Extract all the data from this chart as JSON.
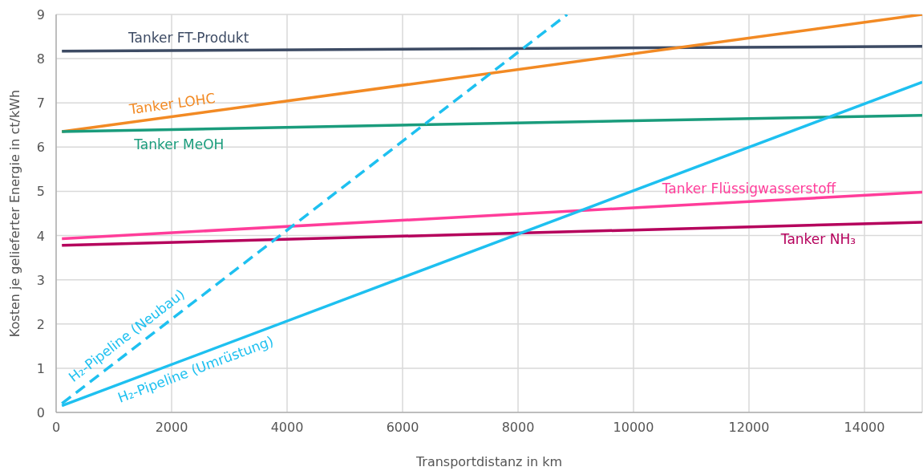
{
  "chart_data": {
    "type": "line",
    "xlabel": "Transportdistanz in km",
    "ylabel": "Kosten je gelieferter Energie in ct/kWh",
    "xlim": [
      0,
      15000
    ],
    "xticks": [
      0,
      2000,
      4000,
      6000,
      8000,
      10000,
      12000,
      14000
    ],
    "ylim": [
      0,
      9
    ],
    "yticks": [
      0,
      1,
      2,
      3,
      4,
      5,
      6,
      7,
      8,
      9
    ],
    "grid": true,
    "marker": "none",
    "series": [
      {
        "name": "Tanker FT-Produkt",
        "color": "#3d4b64",
        "x": [
          100,
          15000
        ],
        "values": [
          8.17,
          8.28
        ]
      },
      {
        "name": "Tanker LOHC",
        "color": "#f28a24",
        "x": [
          100,
          15000
        ],
        "values": [
          6.35,
          9.0
        ]
      },
      {
        "name": "Tanker MeOH",
        "color": "#1a9c7c",
        "x": [
          100,
          15000
        ],
        "values": [
          6.35,
          6.72
        ]
      },
      {
        "name": "Tanker Flüssigwasserstoff",
        "color": "#ff3d9a",
        "x": [
          100,
          15000
        ],
        "values": [
          3.93,
          4.98
        ]
      },
      {
        "name": "Tanker NH₃",
        "color": "#b5005c",
        "x": [
          100,
          15000
        ],
        "values": [
          3.78,
          4.3
        ]
      },
      {
        "name": "H₂-Pipeline (Umrüstung)",
        "color": "#1ec0f0",
        "x": [
          100,
          15000
        ],
        "values": [
          0.15,
          7.47
        ]
      },
      {
        "name": "H₂-Pipeline (Neubau)",
        "color": "#1ec0f0",
        "line_style": "dashed",
        "x": [
          100,
          8850
        ],
        "values": [
          0.2,
          9.0
        ]
      }
    ]
  }
}
